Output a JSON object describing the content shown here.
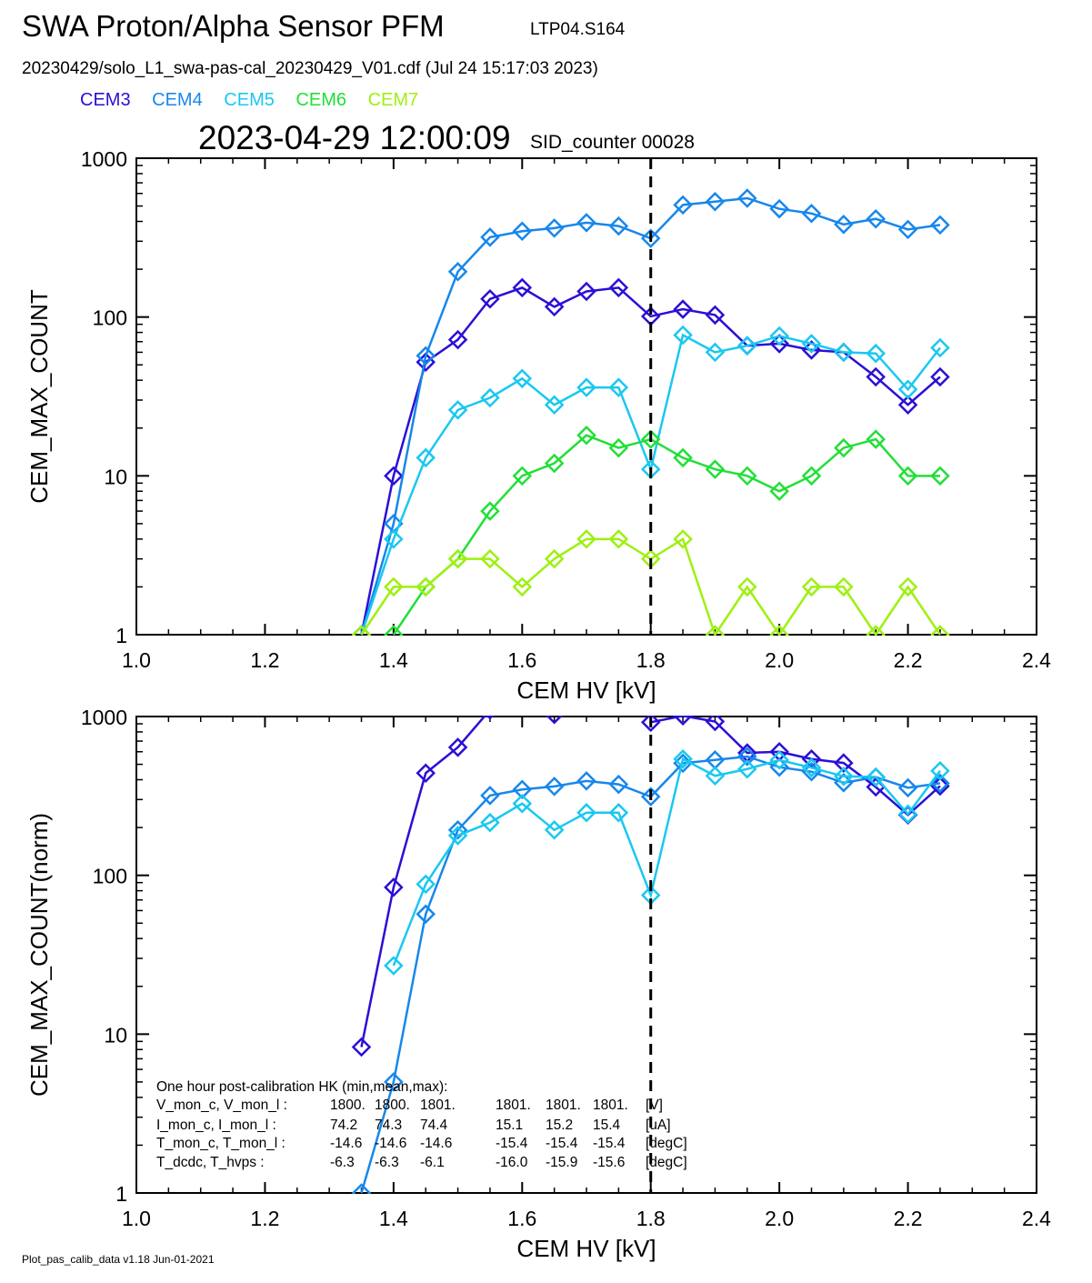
{
  "header": {
    "title": "SWA Proton/Alpha Sensor PFM",
    "subtitle": "LTP04.S164",
    "filename": "20230429/solo_L1_swa-pas-cal_20230429_V01.cdf  (Jul 24 15:17:03 2023)",
    "datetime": "2023-04-29 12:00:09",
    "sid": "SID_counter 00028"
  },
  "legend": [
    {
      "label": "CEM3",
      "color": "#2a0fd6"
    },
    {
      "label": "CEM4",
      "color": "#1787eb"
    },
    {
      "label": "CEM5",
      "color": "#19c8f0"
    },
    {
      "label": "CEM6",
      "color": "#20e036"
    },
    {
      "label": "CEM7",
      "color": "#9ef011"
    }
  ],
  "footer": "Plot_pas_calib_data v1.18 Jun-01-2021",
  "hk_box": {
    "lines": [
      [
        "One hour post-calibration HK (min,mean,max):"
      ],
      [
        "V_mon_c, V_mon_l :",
        "1800.",
        "1800.",
        "1801.",
        "1801.",
        "1801.",
        "1801.",
        "[V]"
      ],
      [
        "I_mon_c,  I_mon_l :",
        "74.2",
        "74.3",
        "74.4",
        "15.1",
        "15.2",
        "15.4",
        "[uA]"
      ],
      [
        "T_mon_c, T_mon_l :",
        "-14.6",
        "-14.6",
        "-14.6",
        "-15.4",
        "-15.4",
        "-15.4",
        "[degC]"
      ],
      [
        "T_dcdc,    T_hvps :",
        "-6.3",
        "-6.3",
        "-6.1",
        "-16.0",
        "-15.9",
        "-15.6",
        "[degC]"
      ]
    ]
  },
  "chart_data": [
    {
      "type": "line",
      "xlabel": "CEM HV [kV]",
      "ylabel": "CEM_MAX_COUNT",
      "xlim": [
        1.0,
        2.4
      ],
      "ylim": [
        1,
        1000
      ],
      "yscale": "log",
      "xticks": [
        "1.0",
        "1.2",
        "1.4",
        "1.6",
        "1.8",
        "2.0",
        "2.2",
        "2.4"
      ],
      "yticks": [
        "1",
        "10",
        "100",
        "1000"
      ],
      "vline": 1.8,
      "marker": "diamond",
      "x": [
        1.35,
        1.4,
        1.45,
        1.5,
        1.55,
        1.6,
        1.65,
        1.7,
        1.75,
        1.8,
        1.85,
        1.9,
        1.95,
        2.0,
        2.05,
        2.1,
        2.15,
        2.2,
        2.25
      ],
      "series": [
        {
          "legend_label": "CEM3",
          "color": "#2a0fd6",
          "values": [
            1,
            10,
            52,
            72,
            130,
            153,
            116,
            145,
            153,
            101,
            112,
            103,
            66,
            68,
            62,
            60,
            42,
            28,
            42
          ]
        },
        {
          "legend_label": "CEM4",
          "color": "#1787eb",
          "values": [
            1,
            5,
            57,
            193,
            318,
            347,
            363,
            393,
            374,
            313,
            508,
            533,
            560,
            480,
            449,
            383,
            415,
            356,
            380
          ]
        },
        {
          "legend_label": "CEM5",
          "color": "#19c8f0",
          "values": [
            1,
            4,
            13,
            26,
            31,
            41,
            28,
            36,
            36,
            11,
            77,
            60,
            66,
            76,
            68,
            60,
            59,
            35,
            64
          ]
        },
        {
          "legend_label": "CEM6",
          "color": "#20e036",
          "values": [
            null,
            1,
            2,
            3,
            6,
            10,
            12,
            18,
            15,
            17,
            13,
            11,
            10,
            8,
            10,
            15,
            17,
            10,
            10
          ]
        },
        {
          "legend_label": "CEM7",
          "color": "#9ef011",
          "values": [
            1,
            2,
            2,
            3,
            3,
            2,
            3,
            4,
            4,
            3,
            4,
            1,
            2,
            1,
            2,
            2,
            1,
            2,
            1
          ]
        }
      ]
    },
    {
      "type": "line",
      "xlabel": "CEM HV [kV]",
      "ylabel": "CEM_MAX_COUNT(norm)",
      "xlim": [
        1.0,
        2.4
      ],
      "ylim": [
        1,
        1000
      ],
      "yscale": "log",
      "xticks": [
        "1.0",
        "1.2",
        "1.4",
        "1.6",
        "1.8",
        "2.0",
        "2.2",
        "2.4"
      ],
      "yticks": [
        "1",
        "10",
        "100",
        "1000"
      ],
      "vline": 1.8,
      "marker": "diamond",
      "x": [
        1.35,
        1.4,
        1.45,
        1.5,
        1.55,
        1.6,
        1.65,
        1.7,
        1.75,
        1.8,
        1.85,
        1.9,
        1.95,
        2.0,
        2.05,
        2.1,
        2.15,
        2.2,
        2.25
      ],
      "series": [
        {
          "legend_label": "CEM3",
          "color": "#2a0fd6",
          "values": [
            8.3,
            84,
            440,
            640,
            1100,
            null,
            1030,
            null,
            null,
            920,
            1010,
            930,
            590,
            600,
            540,
            510,
            360,
            240,
            365
          ]
        },
        {
          "legend_label": "CEM4",
          "color": "#1787eb",
          "values": [
            1,
            5,
            57,
            193,
            318,
            347,
            363,
            393,
            374,
            313,
            508,
            533,
            560,
            480,
            449,
            383,
            415,
            356,
            380
          ]
        },
        {
          "legend_label": "CEM5",
          "color": "#19c8f0",
          "values": [
            null,
            27,
            88,
            178,
            215,
            283,
            193,
            248,
            248,
            75,
            540,
            423,
            467,
            532,
            476,
            420,
            416,
            243,
            455
          ]
        }
      ]
    }
  ]
}
